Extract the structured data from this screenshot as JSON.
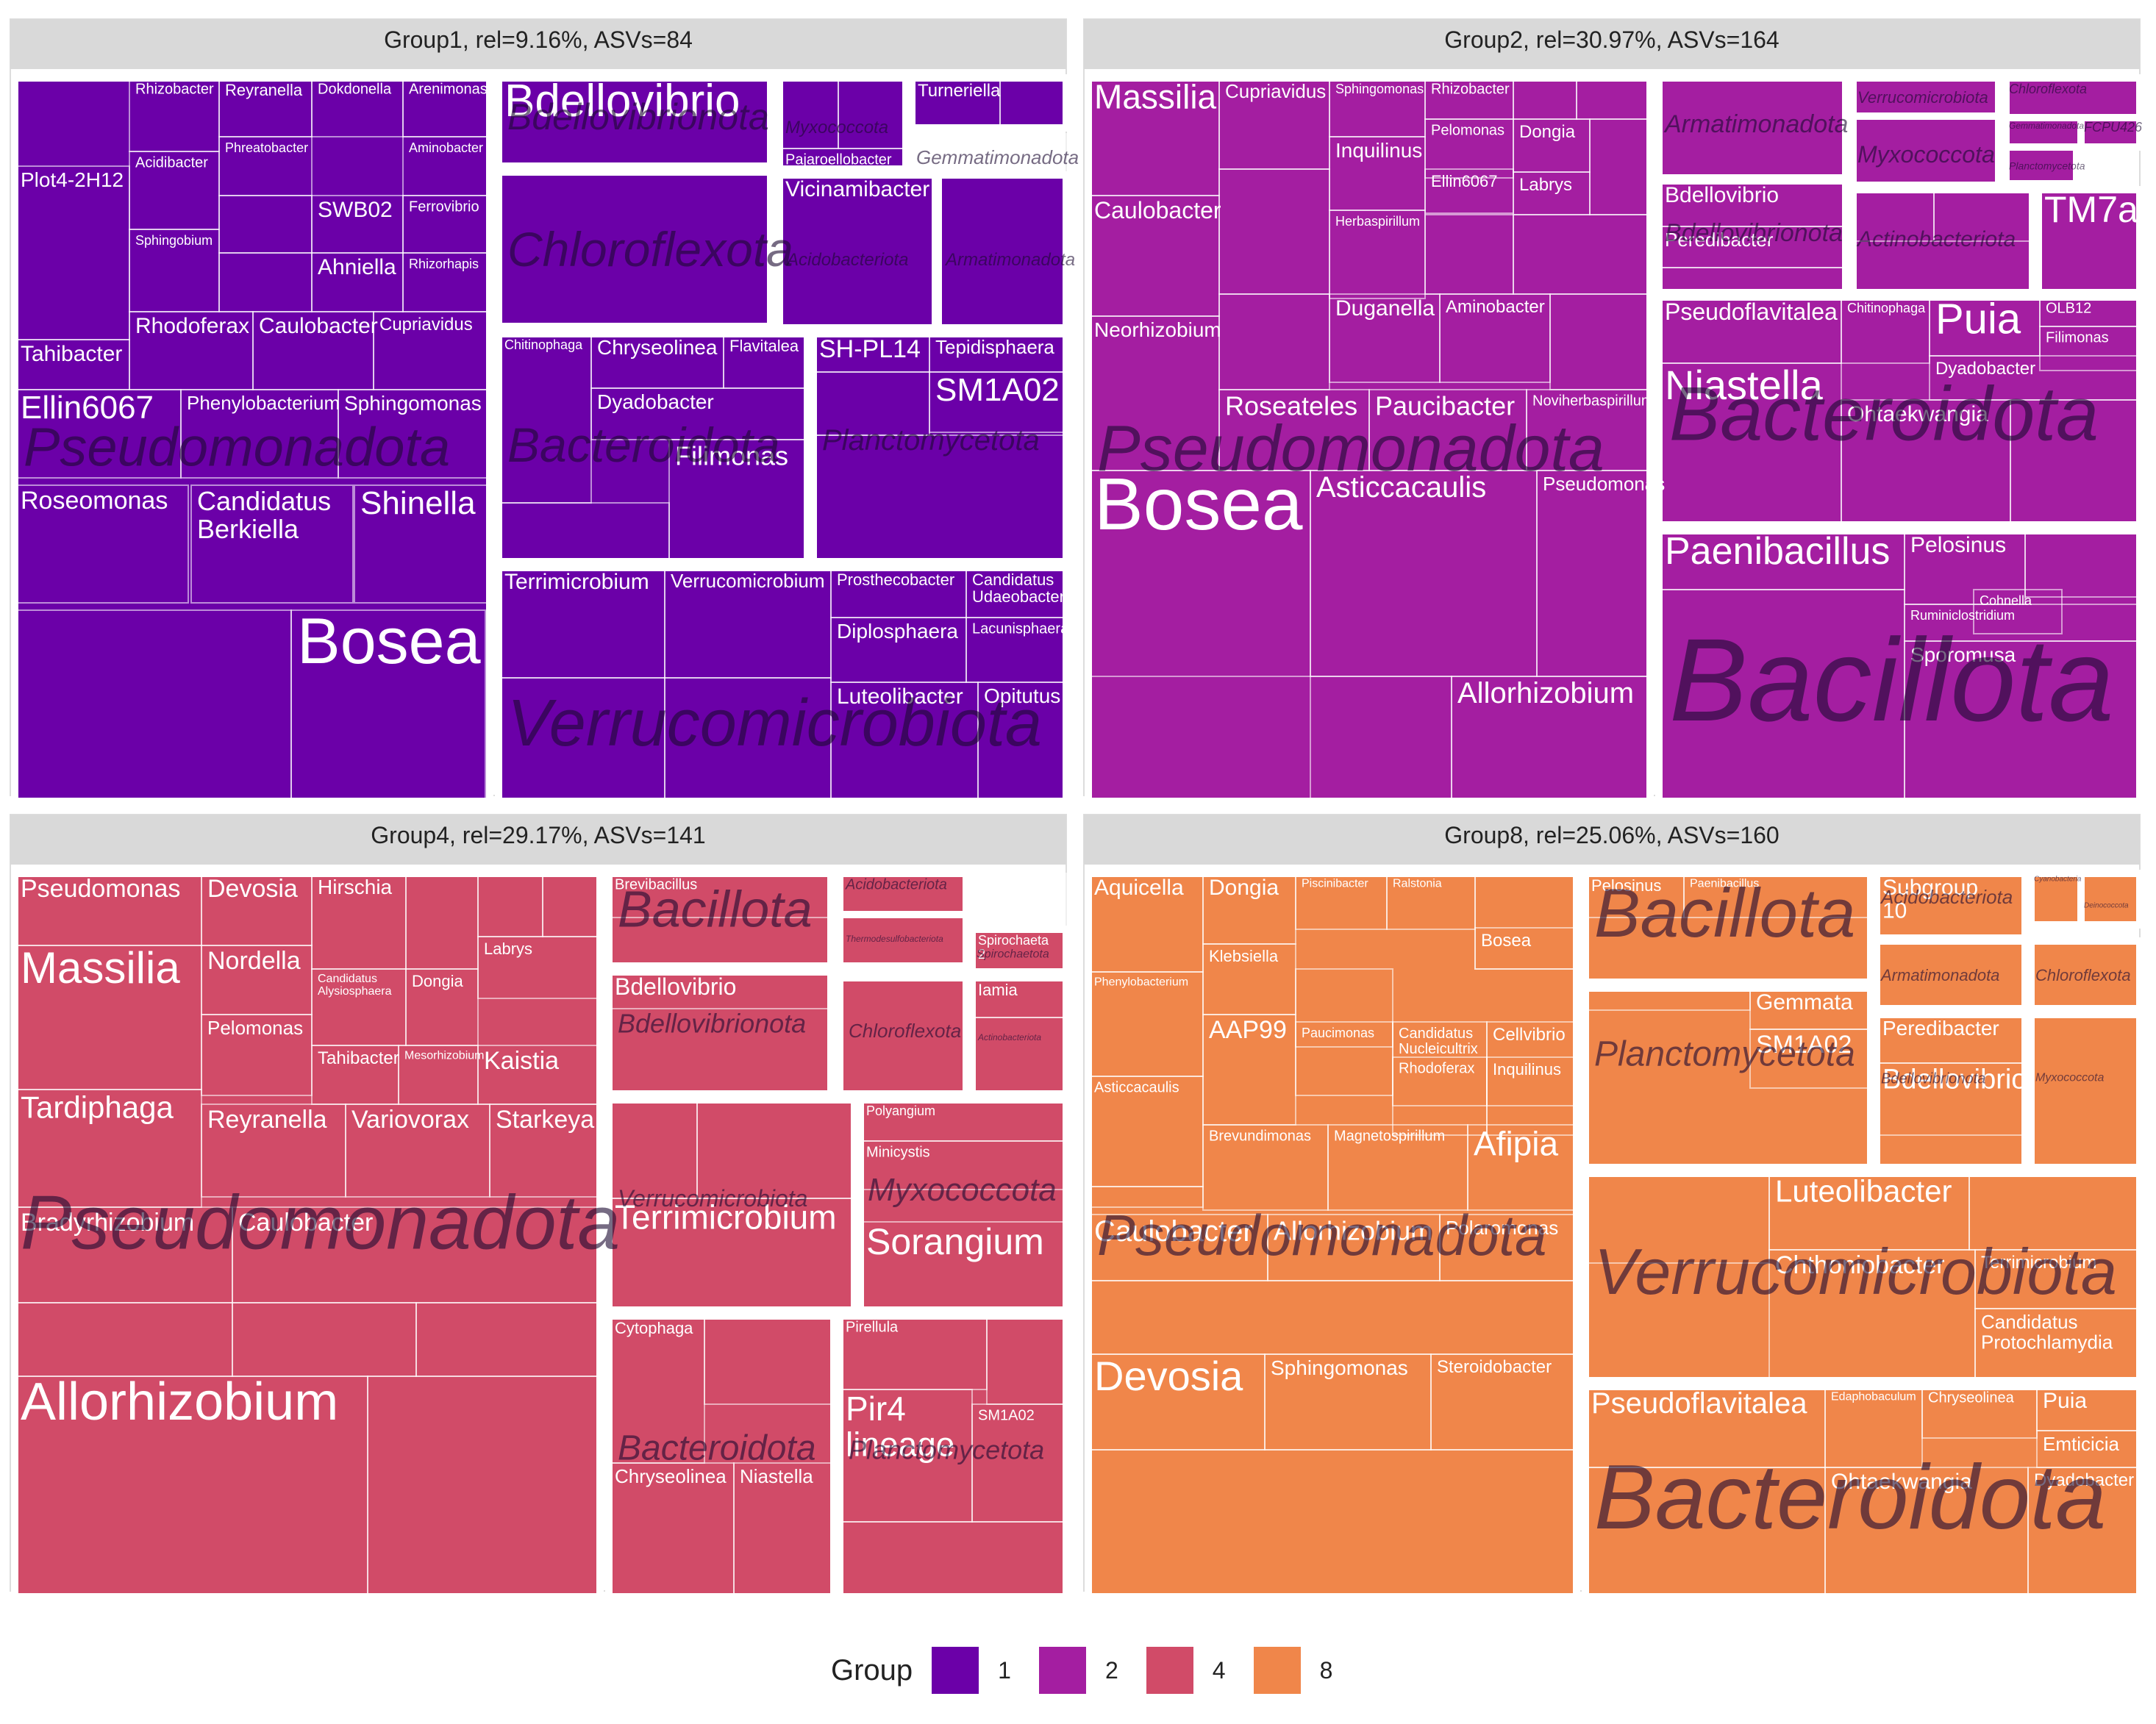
{
  "chart_data": {
    "type": "treemap",
    "legend": {
      "title": "Group",
      "placement": "bottom",
      "items": [
        {
          "label": "1",
          "color": "#6B00A8"
        },
        {
          "label": "2",
          "color": "#A41EA1"
        },
        {
          "label": "4",
          "color": "#D14B68"
        },
        {
          "label": "8",
          "color": "#F0864A"
        }
      ]
    },
    "panels": [
      {
        "title": "Group1, rel=9.16%, ASVs=84",
        "group": "1",
        "color": "#6B00A8",
        "phyla": [
          {
            "name": "Pseudomonadota",
            "genera": [
              "Bosea",
              "Shinella",
              "Candidatus Berkiella",
              "Roseomonas",
              "Ellin6067",
              "Phenylobacterium",
              "Sphingomonas",
              "Rhodoferax",
              "Caulobacter",
              "Cupriavidus",
              "Tahibacter",
              "Plot4-2H12",
              "Sphingobium",
              "Acidibacter",
              "Rhizobacter",
              "Reyranella",
              "Dokdonella",
              "Arenimonas",
              "Phreatobacter",
              "Aminobacter",
              "SWB02",
              "Ferrovibrio",
              "Ahniella",
              "Rhizorhapis"
            ]
          },
          {
            "name": "Verrucomicrobiota",
            "genera": [
              "Terrimicrobium",
              "Verrucomicrobium",
              "Prosthecobacter",
              "Candidatus Udaeobacter",
              "Diplosphaera",
              "Lacunisphaera",
              "Luteolibacter",
              "Opitutus"
            ]
          },
          {
            "name": "Bacteroidota",
            "genera": [
              "Chryseolinea",
              "Flavitalea",
              "Chitinophaga",
              "Dyadobacter",
              "Filimonas"
            ]
          },
          {
            "name": "Planctomycetota",
            "genera": [
              "SH-PL14",
              "Tepidisphaera",
              "SM1A02"
            ]
          },
          {
            "name": "Chloroflexota",
            "genera": []
          },
          {
            "name": "Bdellovibrionota",
            "genera": [
              "Bdellovibrio"
            ]
          },
          {
            "name": "Acidobacteriota",
            "genera": [
              "Vicinamibacter"
            ]
          },
          {
            "name": "Armatimonadota",
            "genera": []
          },
          {
            "name": "Myxococcota",
            "genera": [
              "Pajaroellobacter"
            ]
          },
          {
            "name": "Gemmatimonadota",
            "genera": []
          },
          {
            "name": "Gemmatimonadota",
            "genera": [
              "Turneriella"
            ]
          }
        ]
      },
      {
        "title": "Group2, rel=30.97%, ASVs=164",
        "group": "2",
        "color": "#A41EA1",
        "phyla": [
          {
            "name": "Pseudomonadota",
            "genera": [
              "Bosea",
              "Allorhizobium",
              "Asticcacaulis",
              "Pseudomonas",
              "Roseateles",
              "Paucibacter",
              "Noviherbaspirillum",
              "Massilia",
              "Caulobacter",
              "Neorhizobium",
              "Cupriavidus",
              "Inquilinus",
              "Herbaspirillum",
              "Duganella",
              "Aminobacter",
              "Sphingomonas",
              "Rhizobacter",
              "Pelomonas",
              "Dongia",
              "Ellin6067",
              "Labrys"
            ]
          },
          {
            "name": "Bacillota",
            "genera": [
              "Paenibacillus",
              "Pelosinus",
              "Cohnella",
              "Ruminiclostridium",
              "Sporomusa"
            ]
          },
          {
            "name": "Bacteroidota",
            "genera": [
              "Pseudoflavitalea",
              "Chitinophaga",
              "Puia",
              "OLB12",
              "Filimonas",
              "Dyadobacter",
              "Niastella",
              "Ohtaekwangia"
            ]
          },
          {
            "name": "Armatimonadota",
            "genera": []
          },
          {
            "name": "Bdellovibrionota",
            "genera": [
              "Bdellovibrio",
              "Peredibacter"
            ]
          },
          {
            "name": "Actinobacteriota",
            "genera": []
          },
          {
            "name": "Myxococcota",
            "genera": []
          },
          {
            "name": "Verrucomicrobiota",
            "genera": []
          },
          {
            "name": "Chloroflexota",
            "genera": []
          },
          {
            "name": "Gemmatimonadota",
            "genera": []
          },
          {
            "name": "Planctomycetota",
            "genera": []
          },
          {
            "name": "FCPU426",
            "genera": []
          },
          {
            "name": "TM7a",
            "genera": []
          }
        ]
      },
      {
        "title": "Group4, rel=29.17%, ASVs=141",
        "group": "4",
        "color": "#D14B68",
        "phyla": [
          {
            "name": "Pseudomonadota",
            "genera": [
              "Allorhizobium",
              "Bradyrhizobium",
              "Caulobacter",
              "Massilia",
              "Pseudomonas",
              "Tardiphaga",
              "Devosia",
              "Nordella",
              "Pelomonas",
              "Hirschia",
              "Labrys",
              "Candidatus Alysiosphaera",
              "Dongia",
              "Tahibacter",
              "Mesorhizobium",
              "Kaistia",
              "Reyranella",
              "Variovorax",
              "Starkeya"
            ]
          },
          {
            "name": "Bacillota",
            "genera": [
              "Brevibacillus"
            ]
          },
          {
            "name": "Bdellovibrionota",
            "genera": [
              "Bdellovibrio"
            ]
          },
          {
            "name": "Verrucomicrobiota",
            "genera": [
              "Terrimicrobium"
            ]
          },
          {
            "name": "Bacteroidota",
            "genera": [
              "Cytophaga",
              "Chryseolinea",
              "Niastella"
            ]
          },
          {
            "name": "Planctomycetota",
            "genera": [
              "Pir4 lineage",
              "Pirellula",
              "SM1A02"
            ]
          },
          {
            "name": "Myxococcota",
            "genera": [
              "Sorangium",
              "Polyangium",
              "Minicystis"
            ]
          },
          {
            "name": "Chloroflexota",
            "genera": []
          },
          {
            "name": "Actinobacteriota",
            "genera": [
              "Iamia"
            ]
          },
          {
            "name": "Acidobacteriota",
            "genera": []
          },
          {
            "name": "Thermodesulfobacteriota",
            "genera": []
          },
          {
            "name": "Spirochaetota",
            "genera": [
              "Spirochaeta 2"
            ]
          }
        ]
      },
      {
        "title": "Group8, rel=25.06%, ASVs=160",
        "group": "8",
        "color": "#F0864A",
        "phyla": [
          {
            "name": "Pseudomonadota",
            "genera": [
              "Devosia",
              "Caulobacter",
              "Allorhizobium",
              "Polaromonas",
              "Sphingomonas",
              "Steroidobacter",
              "Aquicella",
              "Dongia",
              "Piscinibacter",
              "Ralstonia",
              "Bosea",
              "Klebsiella",
              "Phenylobacterium",
              "Paucimonas",
              "Candidatus Nucleicultrix",
              "Cellvibrio",
              "AAP99",
              "Rhodoferax",
              "Inquilinus",
              "Asticcacaulis",
              "Brevundimonas",
              "Magnetospirillum",
              "Afipia"
            ]
          },
          {
            "name": "Bacteroidota",
            "genera": [
              "Pseudoflavitalea",
              "Edaphobaculum",
              "Chryseolinea",
              "Puia",
              "Emticicia",
              "Ohtaekwangia",
              "Dyadobacter"
            ]
          },
          {
            "name": "Verrucomicrobiota",
            "genera": [
              "Luteolibacter",
              "Chthoniobacter",
              "Terrimicrobium",
              "Candidatus Protochlamydia"
            ]
          },
          {
            "name": "Planctomycetota",
            "genera": [
              "Gemmata",
              "SM1A02"
            ]
          },
          {
            "name": "Bacillota",
            "genera": [
              "Pelosinus",
              "Paenibacillus"
            ]
          },
          {
            "name": "Acidobacteriota",
            "genera": [
              "Subgroup 10"
            ]
          },
          {
            "name": "Bdellovibrionota",
            "genera": [
              "Peredibacter",
              "Bdellovibrio"
            ]
          },
          {
            "name": "Armatimonadota",
            "genera": []
          },
          {
            "name": "Chloroflexota",
            "genera": []
          },
          {
            "name": "Myxococcota",
            "genera": []
          },
          {
            "name": "Cyanobacteria",
            "genera": []
          },
          {
            "name": "Deinococcota",
            "genera": []
          }
        ]
      }
    ]
  }
}
